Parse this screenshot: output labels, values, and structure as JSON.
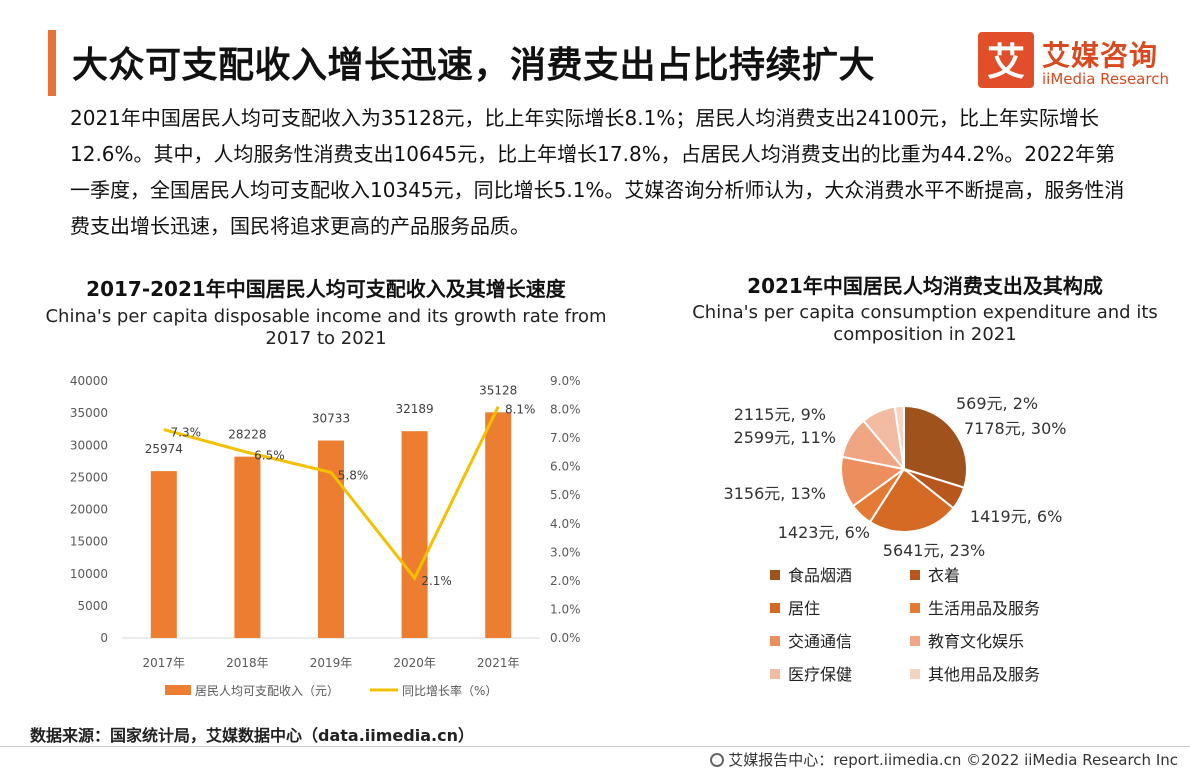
{
  "header": {
    "title": "大众可支配收入增长迅速，消费支出占比持续扩大",
    "logo_cn": "艾媒咨询",
    "logo_en": "iiMedia Research",
    "logo_glyph": "艾"
  },
  "intro": "2021年中国居民人均可支配收入为35128元，比上年实际增长8.1%；居民人均消费支出24100元，比上年实际增长12.6%。其中，人均服务性消费支出10645元，比上年增长17.8%，占居民人均消费支出的比重为44.2%。2022年第一季度，全国居民人均可支配收入10345元，同比增长5.1%。艾媒咨询分析师认为，大众消费水平不断提高，服务性消费支出增长迅速，国民将追求更高的产品服务品质。",
  "chart_data": [
    {
      "type": "bar",
      "title": "2017-2021年中国居民人均可支配收入及其增长速度",
      "subtitle": "China's per capita disposable income and its growth rate from 2017 to 2021",
      "categories": [
        "2017年",
        "2018年",
        "2019年",
        "2020年",
        "2021年"
      ],
      "series": [
        {
          "name": "居民人均可支配收入（元）",
          "type": "bar",
          "axis": "left",
          "values": [
            25974,
            28228,
            30733,
            32189,
            35128
          ],
          "labels": [
            "25974",
            "28228",
            "30733",
            "32189",
            "35128"
          ],
          "color": "#ed7d31"
        },
        {
          "name": "同比增长率（%）",
          "type": "line",
          "axis": "right",
          "values": [
            7.3,
            6.5,
            5.8,
            2.1,
            8.1
          ],
          "labels": [
            "7.3%",
            "6.5%",
            "5.8%",
            "2.1%",
            "8.1%"
          ],
          "color": "#f5c000"
        }
      ],
      "ylim_left": [
        0,
        40000
      ],
      "ylim_right": [
        0,
        9
      ],
      "left_ticks": [
        "0",
        "5000",
        "10000",
        "15000",
        "20000",
        "25000",
        "30000",
        "35000",
        "40000"
      ],
      "right_ticks": [
        "0.0%",
        "1.0%",
        "2.0%",
        "3.0%",
        "4.0%",
        "5.0%",
        "6.0%",
        "7.0%",
        "8.0%",
        "9.0%"
      ],
      "legend": "bottom",
      "grid": false
    },
    {
      "type": "pie",
      "title": "2021年中国居民人均消费支出及其构成",
      "subtitle": "China's per capita consumption expenditure and its composition in 2021",
      "slices": [
        {
          "name": "食品烟酒",
          "value": 7178,
          "label": "7178元, 30%",
          "color": "#a0521c"
        },
        {
          "name": "衣着",
          "value": 1419,
          "label": "1419元, 6%",
          "color": "#b8571d"
        },
        {
          "name": "居住",
          "value": 5641,
          "label": "5641元, 23%",
          "color": "#d56a24"
        },
        {
          "name": "生活用品及服务",
          "value": 1423,
          "label": "1423元, 6%",
          "color": "#e47a34"
        },
        {
          "name": "交通通信",
          "value": 3156,
          "label": "3156元, 13%",
          "color": "#ec8e5d"
        },
        {
          "name": "教育文化娱乐",
          "value": 2599,
          "label": "2599元, 11%",
          "color": "#f0a683"
        },
        {
          "name": "医疗保健",
          "value": 2115,
          "label": "2115元, 9%",
          "color": "#f4bba3"
        },
        {
          "name": "其他用品及服务",
          "value": 569,
          "label": "569元, 2%",
          "color": "#f7d3c4"
        }
      ],
      "legend": "bottom"
    }
  ],
  "source": "数据来源：国家统计局，艾媒数据中心（data.iimedia.cn）",
  "footer": "艾媒报告中心：report.iimedia.cn  ©2022  iiMedia Research  Inc"
}
